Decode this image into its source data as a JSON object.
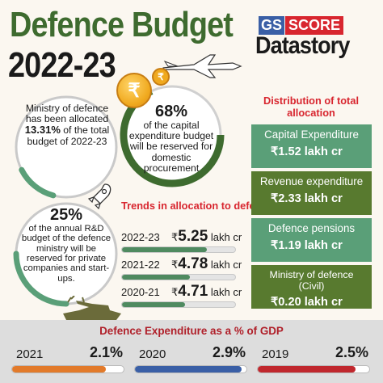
{
  "header": {
    "title": "Defence Budget",
    "year": "2022-23"
  },
  "logo": {
    "gs": "GS",
    "score": "SCORE",
    "datastory": "Datastory"
  },
  "circles": {
    "ministry": {
      "line1": "Ministry of defence has been allocated",
      "highlight": "13.31%",
      "line2": "of the total budget of 2022-23",
      "progress": 0.1331
    },
    "capital": {
      "percent": "68%",
      "text": "of the capital expenditure budget will be reserved for domestic procurement",
      "progress": 0.68
    },
    "rnd": {
      "percent": "25%",
      "text": "of the annual R&D budget of the defence ministry will be reserved for private companies and start-ups.",
      "progress": 0.25
    }
  },
  "coin": {
    "symbol": "₹",
    "small_symbol": "₹"
  },
  "trends": {
    "title": "Trends in allocation to defence sector",
    "rows": [
      {
        "year": "2022-23",
        "symbol": "₹",
        "value": "5.25",
        "unit": "lakh cr",
        "progress": 0.75
      },
      {
        "year": "2021-22",
        "symbol": "₹",
        "value": "4.78",
        "unit": "lakh cr",
        "progress": 0.6
      },
      {
        "year": "2020-21",
        "symbol": "₹",
        "value": "4.71",
        "unit": "lakh cr",
        "progress": 0.56
      }
    ]
  },
  "distribution": {
    "title": "Distribution of total allocation",
    "items": [
      {
        "label": "Capital Expenditure",
        "value": "₹1.52 lakh cr",
        "color": "#5a9f78"
      },
      {
        "label": "Revenue expenditure",
        "value": "₹2.33 lakh cr",
        "color": "#587a2f"
      },
      {
        "label": "Defence pensions",
        "value": "₹1.19 lakh cr",
        "color": "#5a9f78"
      },
      {
        "label": "Ministry of defence (Civil)",
        "value": "₹0.20 lakh cr",
        "color": "#587a2f"
      }
    ]
  },
  "gdp": {
    "title": "Defence Expenditure as a % of GDP",
    "items": [
      {
        "year": "2021",
        "value": "2.1%",
        "progress": 0.84,
        "color": "#e27a2a"
      },
      {
        "year": "2020",
        "value": "2.9%",
        "progress": 0.96,
        "color": "#3a5fa6"
      },
      {
        "year": "2019",
        "value": "2.5%",
        "progress": 0.88,
        "color": "#c0272d"
      }
    ]
  },
  "colors": {
    "accent_green": "#3e6b2f",
    "accent_red": "#d8262f",
    "progress_green": "#4f8a60"
  }
}
